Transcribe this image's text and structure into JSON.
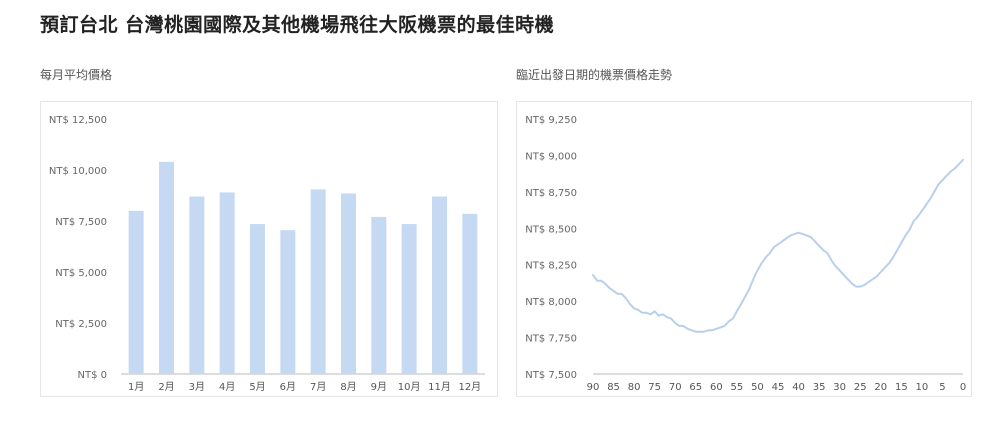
{
  "page": {
    "title": "預訂台北 台灣桃園國際及其他機場飛往大阪機票的最佳時機"
  },
  "chart_data": [
    {
      "type": "bar",
      "title": "每月平均價格",
      "categories": [
        "1月",
        "2月",
        "3月",
        "4月",
        "5月",
        "6月",
        "7月",
        "8月",
        "9月",
        "10月",
        "11月",
        "12月"
      ],
      "values": [
        8000,
        10400,
        8700,
        8900,
        7350,
        7050,
        9050,
        8850,
        7700,
        7350,
        8700,
        7850
      ],
      "ylim": [
        0,
        12500
      ],
      "yticks": [
        0,
        2500,
        5000,
        7500,
        10000,
        12500
      ],
      "ytick_labels": [
        "NT$ 0",
        "NT$ 2,500",
        "NT$ 5,000",
        "NT$ 7,500",
        "NT$ 10,000",
        "NT$ 12,500"
      ],
      "grid": false,
      "color": "#c5d9f3"
    },
    {
      "type": "line",
      "title": "臨近出發日期的機票價格走勢",
      "x": [
        90,
        89,
        88,
        87,
        86,
        85,
        84,
        83,
        82,
        81,
        80,
        79,
        78,
        77,
        76,
        75,
        74,
        73,
        72,
        71,
        70,
        69,
        68,
        67,
        66,
        65,
        64,
        63,
        62,
        61,
        60,
        59,
        58,
        57,
        56,
        55,
        54,
        53,
        52,
        51,
        50,
        49,
        48,
        47,
        46,
        45,
        44,
        43,
        42,
        41,
        40,
        39,
        38,
        37,
        36,
        35,
        34,
        33,
        32,
        31,
        30,
        29,
        28,
        27,
        26,
        25,
        24,
        23,
        22,
        21,
        20,
        19,
        18,
        17,
        16,
        15,
        14,
        13,
        12,
        11,
        10,
        9,
        8,
        7,
        6,
        5,
        4,
        3,
        2,
        1,
        0
      ],
      "y": [
        8180,
        8140,
        8140,
        8120,
        8090,
        8070,
        8050,
        8050,
        8020,
        7980,
        7950,
        7940,
        7920,
        7920,
        7910,
        7930,
        7900,
        7910,
        7890,
        7880,
        7850,
        7830,
        7830,
        7810,
        7800,
        7790,
        7790,
        7790,
        7800,
        7800,
        7810,
        7820,
        7830,
        7860,
        7880,
        7930,
        7980,
        8030,
        8080,
        8150,
        8210,
        8260,
        8300,
        8330,
        8370,
        8390,
        8410,
        8430,
        8450,
        8460,
        8470,
        8460,
        8450,
        8440,
        8410,
        8380,
        8350,
        8330,
        8280,
        8240,
        8210,
        8180,
        8150,
        8120,
        8100,
        8100,
        8110,
        8130,
        8150,
        8170,
        8200,
        8230,
        8260,
        8300,
        8350,
        8400,
        8450,
        8490,
        8550,
        8580,
        8620,
        8660,
        8700,
        8750,
        8800,
        8830,
        8860,
        8890,
        8910,
        8940,
        8970
      ],
      "xticks": [
        90,
        85,
        80,
        75,
        70,
        65,
        60,
        55,
        50,
        45,
        40,
        35,
        30,
        25,
        20,
        15,
        10,
        5,
        0
      ],
      "ylim": [
        7500,
        9250
      ],
      "yticks": [
        7500,
        7750,
        8000,
        8250,
        8500,
        8750,
        9000,
        9250
      ],
      "ytick_labels": [
        "NT$ 7,500",
        "NT$ 7,750",
        "NT$ 8,000",
        "NT$ 8,250",
        "NT$ 8,500",
        "NT$ 8,750",
        "NT$ 9,000",
        "NT$ 9,250"
      ],
      "grid": false,
      "color": "#b9d0ea"
    }
  ]
}
